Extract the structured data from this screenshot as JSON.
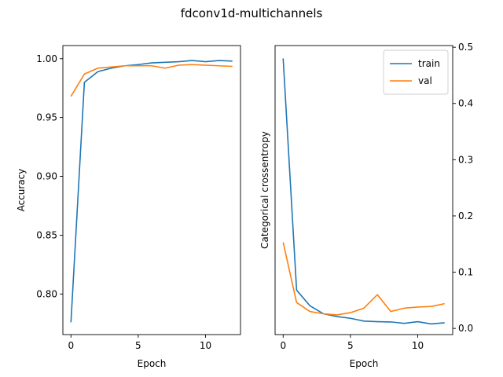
{
  "figure": {
    "title": "fdconv1d-multichannels"
  },
  "colors": {
    "train": "#1f77b4",
    "val": "#ff7f0e",
    "axis": "#000000",
    "background": "#ffffff"
  },
  "chart_data": [
    {
      "type": "line",
      "title": "",
      "xlabel": "Epoch",
      "ylabel": "Accuracy",
      "xlim": [
        -0.6,
        12.6
      ],
      "ylim": [
        0.7655,
        1.0112
      ],
      "xticks": [
        0,
        5,
        10
      ],
      "yticks": [
        0.8,
        0.85,
        0.9,
        0.95,
        1.0
      ],
      "ytick_labels": [
        "0.80",
        "0.85",
        "0.90",
        "0.95",
        "1.00"
      ],
      "yaxis_side": "left",
      "legend": null,
      "grid": false,
      "x": [
        0,
        1,
        2,
        3,
        4,
        5,
        6,
        7,
        8,
        9,
        10,
        11,
        12
      ],
      "series": [
        {
          "key": "train",
          "values": [
            0.776,
            0.98,
            0.989,
            0.992,
            0.994,
            0.995,
            0.9965,
            0.997,
            0.9975,
            0.9985,
            0.9975,
            0.9985,
            0.998
          ]
        },
        {
          "key": "val",
          "values": [
            0.968,
            0.987,
            0.992,
            0.993,
            0.994,
            0.994,
            0.994,
            0.992,
            0.9945,
            0.995,
            0.9945,
            0.994,
            0.9935
          ]
        }
      ]
    },
    {
      "type": "line",
      "title": "",
      "xlabel": "Epoch",
      "ylabel": "Categorical crossentropy",
      "xlim": [
        -0.6,
        12.6
      ],
      "ylim": [
        -0.011,
        0.503
      ],
      "xticks": [
        0,
        5,
        10
      ],
      "yticks": [
        0.0,
        0.1,
        0.2,
        0.3,
        0.4,
        0.5
      ],
      "ytick_labels": [
        "0.0",
        "0.1",
        "0.2",
        "0.3",
        "0.4",
        "0.5"
      ],
      "yaxis_side": "right",
      "legend": "top-right",
      "grid": false,
      "x": [
        0,
        1,
        2,
        3,
        4,
        5,
        6,
        7,
        8,
        9,
        10,
        11,
        12
      ],
      "series": [
        {
          "key": "train",
          "name": "train",
          "values": [
            0.48,
            0.068,
            0.04,
            0.026,
            0.021,
            0.018,
            0.013,
            0.012,
            0.0115,
            0.009,
            0.012,
            0.008,
            0.01
          ]
        },
        {
          "key": "val",
          "name": "val",
          "values": [
            0.153,
            0.046,
            0.03,
            0.026,
            0.024,
            0.028,
            0.036,
            0.06,
            0.03,
            0.036,
            0.038,
            0.039,
            0.044
          ]
        }
      ]
    }
  ]
}
